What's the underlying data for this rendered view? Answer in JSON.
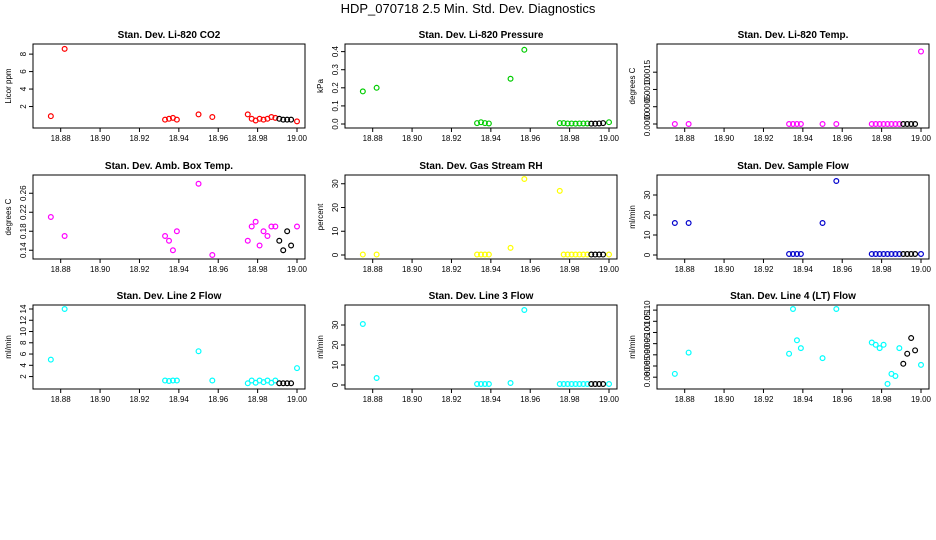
{
  "title": "HDP_070718  2.5 Min. Std. Dev. Diagnostics",
  "chart_data": [
    {
      "type": "scatter",
      "title": "Stan. Dev. Li-820 CO2",
      "xlabel": "",
      "ylabel": "Licor ppm",
      "xlim": [
        18.87,
        19.0
      ],
      "ylim": [
        0,
        8.7
      ],
      "xticks": [
        "18.88",
        "18.90",
        "18.92",
        "18.94",
        "18.96",
        "18.98",
        "19.00"
      ],
      "yticks": [
        "2",
        "4",
        "6",
        "8"
      ],
      "series": [
        {
          "name": "primary",
          "color": "#ff0000",
          "x": [
            18.875,
            18.882,
            18.933,
            18.935,
            18.937,
            18.939,
            18.95,
            18.957,
            18.975,
            18.977,
            18.979,
            18.981,
            18.983,
            18.985,
            18.987,
            18.989,
            19.0
          ],
          "y": [
            0.9,
            8.6,
            0.5,
            0.6,
            0.7,
            0.5,
            1.1,
            0.8,
            1.1,
            0.6,
            0.4,
            0.6,
            0.5,
            0.6,
            0.8,
            0.7,
            0.3
          ]
        },
        {
          "name": "secondary",
          "color": "#000000",
          "x": [
            18.991,
            18.993,
            18.995,
            18.997
          ],
          "y": [
            0.6,
            0.5,
            0.5,
            0.5
          ]
        }
      ]
    },
    {
      "type": "scatter",
      "title": "Stan. Dev. Li-820 Pressure",
      "xlabel": "",
      "ylabel": "kPa",
      "xlim": [
        18.87,
        19.0
      ],
      "ylim": [
        0,
        0.42
      ],
      "xticks": [
        "18.88",
        "18.90",
        "18.92",
        "18.94",
        "18.96",
        "18.98",
        "19.00"
      ],
      "yticks": [
        "0.0",
        "0.1",
        "0.2",
        "0.3",
        "0.4"
      ],
      "series": [
        {
          "name": "primary",
          "color": "#00cc00",
          "x": [
            18.875,
            18.882,
            18.933,
            18.935,
            18.937,
            18.939,
            18.95,
            18.957,
            18.975,
            18.977,
            18.979,
            18.981,
            18.983,
            18.985,
            18.987,
            18.989,
            19.0
          ],
          "y": [
            0.18,
            0.2,
            0.005,
            0.01,
            0.005,
            0.003,
            0.25,
            0.41,
            0.005,
            0.005,
            0.003,
            0.003,
            0.002,
            0.003,
            0.003,
            0.003,
            0.01
          ]
        },
        {
          "name": "secondary",
          "color": "#000000",
          "x": [
            18.991,
            18.993,
            18.995,
            18.997
          ],
          "y": [
            0.002,
            0.002,
            0.003,
            0.005
          ]
        }
      ]
    },
    {
      "type": "scatter",
      "title": "Stan. Dev. Li-820 Temp.",
      "xlabel": "",
      "ylabel": "degrees C",
      "xlim": [
        18.87,
        19.0
      ],
      "ylim": [
        0,
        0.0022
      ],
      "xticks": [
        "18.88",
        "18.90",
        "18.92",
        "18.94",
        "18.96",
        "18.98",
        "19.00"
      ],
      "yticks": [
        "0.0000",
        "0.0005",
        "0.0010",
        "0.0015"
      ],
      "series": [
        {
          "name": "primary",
          "color": "#ff00ff",
          "x": [
            18.875,
            18.882,
            18.933,
            18.935,
            18.937,
            18.939,
            18.95,
            18.957,
            18.975,
            18.977,
            18.979,
            18.981,
            18.983,
            18.985,
            18.987,
            18.989,
            19.0
          ],
          "y": [
            0,
            0,
            0,
            0,
            0,
            0,
            0,
            0,
            0,
            0,
            0,
            0,
            0,
            0,
            0,
            0,
            0.0021
          ]
        },
        {
          "name": "secondary",
          "color": "#000000",
          "x": [
            18.991,
            18.993,
            18.995,
            18.997
          ],
          "y": [
            0,
            0,
            0,
            0
          ]
        }
      ]
    },
    {
      "type": "scatter",
      "title": "Stan. Dev. Amb. Box Temp.",
      "xlabel": "",
      "ylabel": "degrees C",
      "xlim": [
        18.87,
        19.0
      ],
      "ylim": [
        0.13,
        0.29
      ],
      "xticks": [
        "18.88",
        "18.90",
        "18.92",
        "18.94",
        "18.96",
        "18.98",
        "19.00"
      ],
      "yticks": [
        "0.14",
        "0.18",
        "0.22",
        "0.26"
      ],
      "series": [
        {
          "name": "primary",
          "color": "#ff00ff",
          "x": [
            18.875,
            18.882,
            18.933,
            18.935,
            18.937,
            18.939,
            18.95,
            18.957,
            18.975,
            18.977,
            18.979,
            18.981,
            18.983,
            18.985,
            18.987,
            18.989,
            19.0
          ],
          "y": [
            0.21,
            0.17,
            0.17,
            0.16,
            0.14,
            0.18,
            0.28,
            0.13,
            0.16,
            0.19,
            0.2,
            0.15,
            0.18,
            0.17,
            0.19,
            0.19,
            0.19
          ]
        },
        {
          "name": "secondary",
          "color": "#000000",
          "x": [
            18.991,
            18.993,
            18.995,
            18.997
          ],
          "y": [
            0.16,
            0.14,
            0.18,
            0.15
          ]
        }
      ]
    },
    {
      "type": "scatter",
      "title": "Stan. Dev. Gas Stream RH",
      "xlabel": "",
      "ylabel": "percent",
      "xlim": [
        18.87,
        19.0
      ],
      "ylim": [
        0,
        32
      ],
      "xticks": [
        "18.88",
        "18.90",
        "18.92",
        "18.94",
        "18.96",
        "18.98",
        "19.00"
      ],
      "yticks": [
        "0",
        "10",
        "20",
        "30"
      ],
      "series": [
        {
          "name": "primary",
          "color": "#ffff00",
          "x": [
            18.875,
            18.882,
            18.933,
            18.935,
            18.937,
            18.939,
            18.95,
            18.957,
            18.975,
            18.977,
            18.979,
            18.981,
            18.983,
            18.985,
            18.987,
            18.989,
            19.0
          ],
          "y": [
            0.2,
            0.2,
            0.2,
            0.2,
            0.2,
            0.2,
            3.0,
            32,
            27,
            0.2,
            0.2,
            0.2,
            0.2,
            0.2,
            0.2,
            0.2,
            0.2
          ]
        },
        {
          "name": "secondary",
          "color": "#000000",
          "x": [
            18.991,
            18.993,
            18.995,
            18.997
          ],
          "y": [
            0.2,
            0.2,
            0.2,
            0.2
          ]
        }
      ]
    },
    {
      "type": "scatter",
      "title": "Stan. Dev. Sample Flow",
      "xlabel": "",
      "ylabel": "ml/min",
      "xlim": [
        18.87,
        19.0
      ],
      "ylim": [
        0,
        38
      ],
      "xticks": [
        "18.88",
        "18.90",
        "18.92",
        "18.94",
        "18.96",
        "18.98",
        "19.00"
      ],
      "yticks": [
        "0",
        "10",
        "20",
        "30"
      ],
      "series": [
        {
          "name": "primary",
          "color": "#0000cc",
          "x": [
            18.875,
            18.882,
            18.933,
            18.935,
            18.937,
            18.939,
            18.95,
            18.957,
            18.975,
            18.977,
            18.979,
            18.981,
            18.983,
            18.985,
            18.987,
            18.989,
            19.0
          ],
          "y": [
            16,
            16,
            0.5,
            0.5,
            0.5,
            0.5,
            16,
            37,
            0.5,
            0.5,
            0.5,
            0.5,
            0.5,
            0.5,
            0.5,
            0.5,
            0.5
          ]
        },
        {
          "name": "secondary",
          "color": "#000000",
          "x": [
            18.991,
            18.993,
            18.995,
            18.997
          ],
          "y": [
            0.5,
            0.5,
            0.5,
            0.5
          ]
        }
      ]
    },
    {
      "type": "scatter",
      "title": "Stan. Dev. Line 2 Flow",
      "xlabel": "",
      "ylabel": "ml/min",
      "xlim": [
        18.87,
        19.0
      ],
      "ylim": [
        0.5,
        14
      ],
      "xticks": [
        "18.88",
        "18.90",
        "18.92",
        "18.94",
        "18.96",
        "18.98",
        "19.00"
      ],
      "yticks": [
        "2",
        "4",
        "6",
        "8",
        "10",
        "12",
        "14"
      ],
      "series": [
        {
          "name": "primary",
          "color": "#00ffff",
          "x": [
            18.875,
            18.882,
            18.933,
            18.935,
            18.937,
            18.939,
            18.95,
            18.957,
            18.975,
            18.977,
            18.979,
            18.981,
            18.983,
            18.985,
            18.987,
            18.989,
            19.0
          ],
          "y": [
            5.0,
            14,
            1.3,
            1.2,
            1.3,
            1.3,
            6.5,
            1.3,
            0.8,
            1.3,
            0.9,
            1.3,
            1.0,
            1.3,
            0.9,
            1.3,
            3.5
          ]
        },
        {
          "name": "secondary",
          "color": "#000000",
          "x": [
            18.991,
            18.993,
            18.995,
            18.997
          ],
          "y": [
            0.8,
            0.8,
            0.8,
            0.8
          ]
        }
      ]
    },
    {
      "type": "scatter",
      "title": "Stan. Dev. Line 3 Flow",
      "xlabel": "",
      "ylabel": "ml/min",
      "xlim": [
        18.87,
        19.0
      ],
      "ylim": [
        0,
        38
      ],
      "xticks": [
        "18.88",
        "18.90",
        "18.92",
        "18.94",
        "18.96",
        "18.98",
        "19.00"
      ],
      "yticks": [
        "0",
        "10",
        "20",
        "30"
      ],
      "series": [
        {
          "name": "primary",
          "color": "#00ffff",
          "x": [
            18.875,
            18.882,
            18.933,
            18.935,
            18.937,
            18.939,
            18.95,
            18.957,
            18.975,
            18.977,
            18.979,
            18.981,
            18.983,
            18.985,
            18.987,
            18.989,
            19.0
          ],
          "y": [
            30.5,
            3.5,
            0.5,
            0.5,
            0.5,
            0.5,
            1.0,
            37.5,
            0.5,
            0.5,
            0.5,
            0.5,
            0.5,
            0.5,
            0.5,
            0.5,
            0.5
          ]
        },
        {
          "name": "secondary",
          "color": "#000000",
          "x": [
            18.991,
            18.993,
            18.995,
            18.997
          ],
          "y": [
            0.5,
            0.5,
            0.5,
            0.5
          ]
        }
      ]
    },
    {
      "type": "scatter",
      "title": "Stan. Dev. Line 4 (LT) Flow",
      "xlabel": "",
      "ylabel": "ml/min",
      "xlim": [
        18.87,
        19.0
      ],
      "ylim": [
        0.0765,
        0.1105
      ],
      "xticks": [
        "18.88",
        "18.90",
        "18.92",
        "18.94",
        "18.96",
        "18.98",
        "19.00"
      ],
      "yticks": [
        "0.080",
        "0.085",
        "0.090",
        "0.095",
        "0.100",
        "0.105",
        "0.110"
      ],
      "series": [
        {
          "name": "primary",
          "color": "#00ffff",
          "x": [
            18.875,
            18.882,
            18.933,
            18.935,
            18.937,
            18.939,
            18.95,
            18.957,
            18.975,
            18.977,
            18.979,
            18.981,
            18.983,
            18.985,
            18.987,
            18.989,
            19.0
          ],
          "y": [
            0.0815,
            0.091,
            0.0905,
            0.1105,
            0.0965,
            0.093,
            0.0885,
            0.1105,
            0.0955,
            0.0945,
            0.093,
            0.0945,
            0.077,
            0.0815,
            0.0805,
            0.093,
            0.0855
          ]
        },
        {
          "name": "secondary",
          "color": "#000000",
          "x": [
            18.991,
            18.993,
            18.995,
            18.997
          ],
          "y": [
            0.086,
            0.0905,
            0.0975,
            0.092
          ]
        }
      ]
    }
  ]
}
